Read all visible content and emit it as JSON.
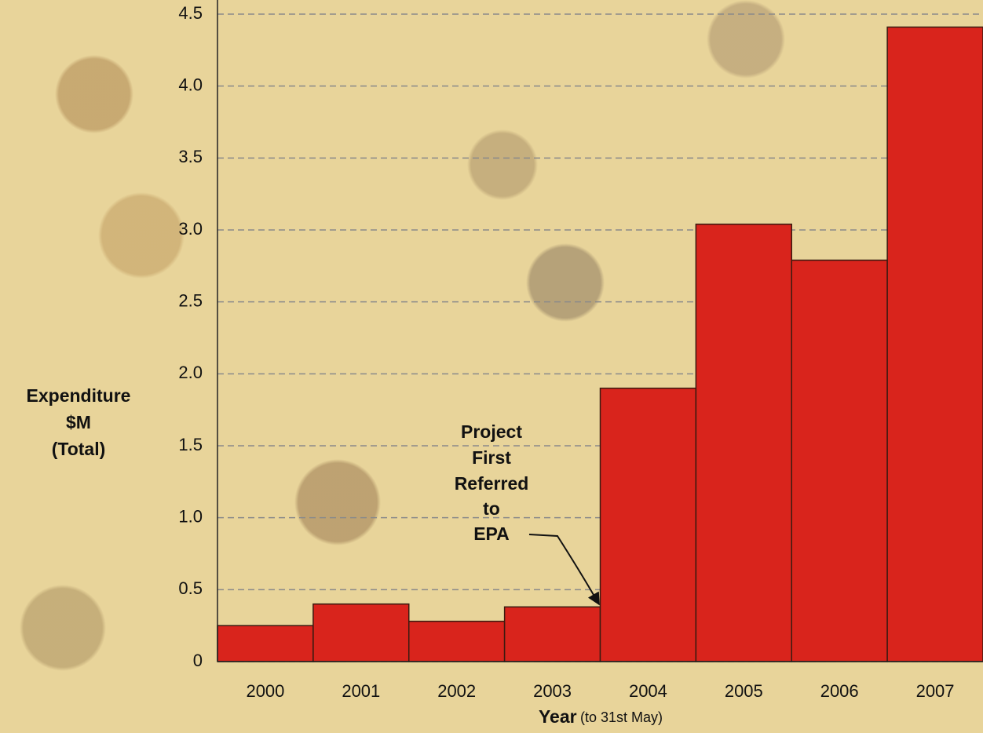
{
  "chart_data": {
    "type": "bar",
    "categories": [
      "2000",
      "2001",
      "2002",
      "2003",
      "2004",
      "2005",
      "2006",
      "2007"
    ],
    "values": [
      0.25,
      0.4,
      0.28,
      0.38,
      1.9,
      3.04,
      2.79,
      4.41
    ],
    "color": "#d9241c",
    "ylim": [
      0,
      4.5
    ],
    "yticks": [
      0,
      0.5,
      {
        "value": 1,
        "label": "1.0"
      },
      1.5,
      {
        "value": 2,
        "label": "2.0"
      },
      2.5,
      {
        "value": 3,
        "label": "3.0"
      },
      3.5,
      {
        "value": 4,
        "label": "4.0"
      },
      4.5
    ],
    "grid": true,
    "y_label": [
      "Expenditure",
      "$M",
      "(Total)"
    ],
    "x_label": "Year",
    "x_label_note": "(to 31st May)",
    "annotation": [
      "Project",
      "First",
      "Referred",
      "to",
      "EPA"
    ]
  }
}
